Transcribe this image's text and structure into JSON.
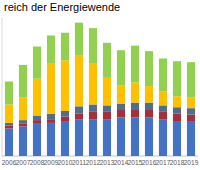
{
  "chart_data": {
    "type": "bar",
    "title": "reich der Energiewende",
    "stacked": true,
    "tick_labels": "x",
    "categories": [
      "2006",
      "2007",
      "2008",
      "2009",
      "2010",
      "2011",
      "2012",
      "2013",
      "2014",
      "2015",
      "2016",
      "2017",
      "2018",
      "2019"
    ],
    "series": [
      {
        "color": "#4472c4",
        "values": [
          30,
          32,
          35,
          36,
          38,
          40,
          40,
          40,
          42,
          42,
          42,
          40,
          38,
          38
        ]
      },
      {
        "color": "#a5303a",
        "values": [
          3,
          3,
          4,
          4,
          5,
          6,
          8,
          8,
          8,
          8,
          8,
          8,
          8,
          7
        ]
      },
      {
        "color": "#4f6d8f",
        "values": [
          3,
          4,
          5,
          6,
          6,
          8,
          8,
          7,
          7,
          8,
          8,
          7,
          7,
          7
        ]
      },
      {
        "color": "#ffc000",
        "values": [
          20,
          25,
          40,
          55,
          55,
          55,
          45,
          30,
          20,
          22,
          18,
          15,
          12,
          12
        ]
      },
      {
        "color": "#92d050",
        "values": [
          25,
          35,
          35,
          30,
          30,
          36,
          38,
          38,
          38,
          40,
          38,
          36,
          38,
          38
        ]
      }
    ],
    "ylim": [
      0,
      150
    ]
  }
}
